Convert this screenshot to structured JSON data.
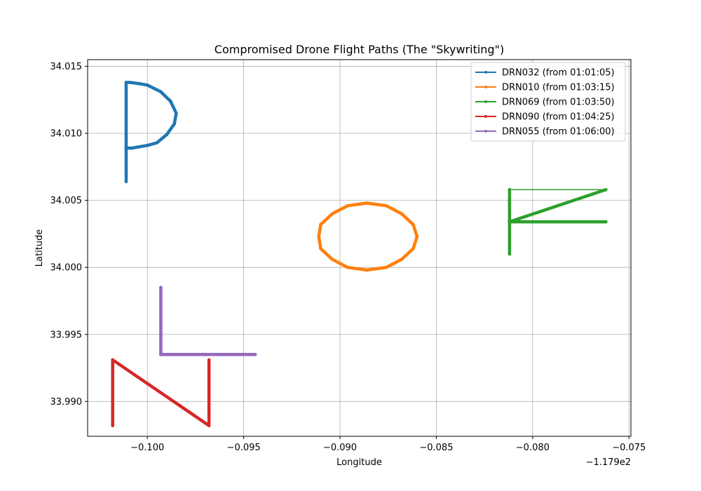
{
  "chart_data": {
    "type": "line",
    "title": "Compromised Drone Flight Paths (The \"Skywriting\")",
    "xlabel": "Longitude",
    "ylabel": "Latitude",
    "x_offset_text": "−1.179e2",
    "xlim": [
      -0.1031,
      -0.0749
    ],
    "ylim": [
      33.9874,
      34.0155
    ],
    "x_ticks": [
      -0.1,
      -0.095,
      -0.09,
      -0.085,
      -0.08,
      -0.075
    ],
    "x_tick_labels": [
      "−0.100",
      "−0.095",
      "−0.090",
      "−0.085",
      "−0.080",
      "−0.075"
    ],
    "y_ticks": [
      33.99,
      33.995,
      34.0,
      34.005,
      34.01,
      34.015
    ],
    "y_tick_labels": [
      "33.990",
      "33.995",
      "34.000",
      "34.005",
      "34.010",
      "34.015"
    ],
    "grid": true,
    "legend_position": "top-right",
    "series": [
      {
        "name": "DRN032 (from 01:01:05)",
        "color": "#1f77b4",
        "shape": "P",
        "x": [
          -0.1011,
          -0.1011,
          -0.1011,
          -0.1011,
          -0.1011,
          -0.1011,
          -0.1011,
          -0.1009,
          -0.1004,
          -0.1,
          -0.0993,
          -0.0988,
          -0.0985,
          -0.0986,
          -0.099,
          -0.0995,
          -0.1,
          -0.1004,
          -0.1008,
          -0.1011
        ],
        "y": [
          34.0064,
          34.0078,
          34.009,
          34.01,
          34.0108,
          34.0114,
          34.0138,
          34.0138,
          34.0137,
          34.0136,
          34.0131,
          34.0124,
          34.0115,
          34.0107,
          34.0099,
          34.0093,
          34.0091,
          34.009,
          34.0089,
          34.0089
        ]
      },
      {
        "name": "DRN010 (from 01:03:15)",
        "color": "#ff7f0e",
        "shape": "O",
        "x": [
          -0.086,
          -0.0862,
          -0.0868,
          -0.0876,
          -0.0886,
          -0.0896,
          -0.0904,
          -0.091,
          -0.0911,
          -0.091,
          -0.0904,
          -0.0896,
          -0.0886,
          -0.0876,
          -0.0868,
          -0.0862,
          -0.086
        ],
        "y": [
          34.0023,
          34.0032,
          34.004,
          34.0046,
          34.0048,
          34.0046,
          34.004,
          34.0032,
          34.0023,
          34.0014,
          34.0006,
          34.0,
          33.9998,
          34.0,
          34.0006,
          34.0014,
          34.0023
        ]
      },
      {
        "name": "DRN069 (from 01:03:50)",
        "color": "#2ca02c",
        "shape": "F",
        "x": [
          -0.0812,
          -0.0812,
          -0.0812,
          -0.0812,
          -0.0762,
          -0.0812,
          -0.0812,
          -0.0762
        ],
        "y": [
          34.001,
          34.0034,
          34.005,
          34.0058,
          34.0058,
          34.0034,
          34.0034,
          34.0034
        ]
      },
      {
        "name": "DRN090 (from 01:04:25)",
        "color": "#d62728",
        "shape": "N",
        "x": [
          -0.1018,
          -0.1018,
          -0.1018,
          -0.0968,
          -0.0968,
          -0.0968
        ],
        "y": [
          33.9882,
          33.9905,
          33.9931,
          33.9882,
          33.9905,
          33.9931
        ]
      },
      {
        "name": "DRN055 (from 01:06:00)",
        "color": "#9467bd",
        "shape": "L",
        "x": [
          -0.0993,
          -0.0993,
          -0.0993,
          -0.097,
          -0.0944
        ],
        "y": [
          33.9985,
          33.996,
          33.9935,
          33.9935,
          33.9935
        ]
      }
    ]
  }
}
